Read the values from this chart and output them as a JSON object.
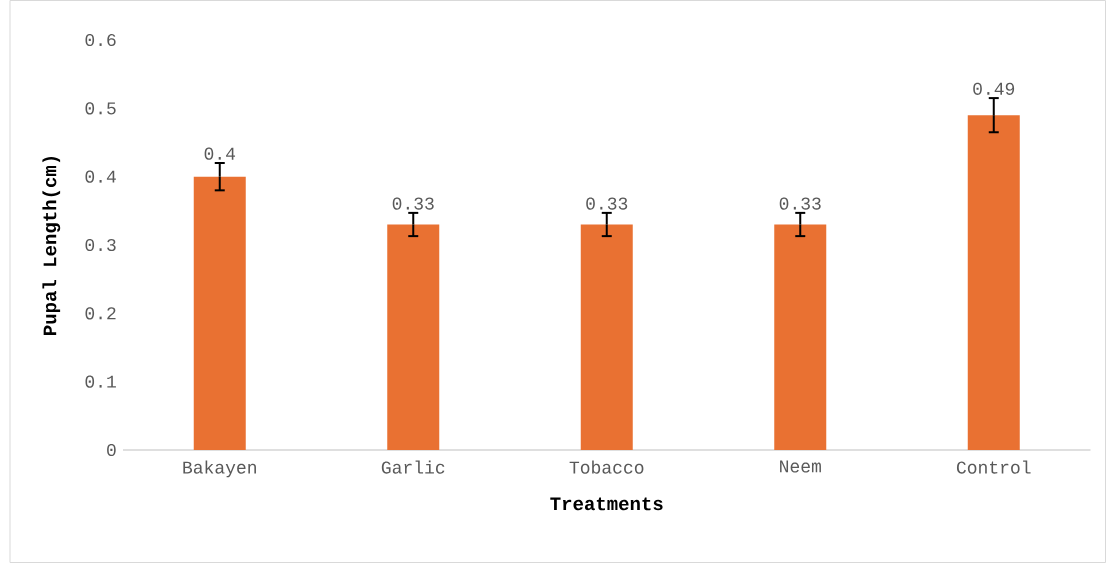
{
  "chart_data": {
    "type": "bar",
    "xlabel": "Treatments",
    "ylabel": "Pupal Length(cm)",
    "categories": [
      "Bakayen",
      "Garlic",
      "Tobacco",
      "Neem",
      "Control"
    ],
    "values": [
      0.4,
      0.33,
      0.33,
      0.33,
      0.49
    ],
    "errors": [
      0.02,
      0.017,
      0.017,
      0.017,
      0.025
    ],
    "color": "#e97132",
    "ylim": [
      0,
      0.6
    ],
    "yticks": [
      0,
      0.1,
      0.2,
      0.3,
      0.4,
      0.5,
      0.6
    ],
    "data_labels": true
  }
}
